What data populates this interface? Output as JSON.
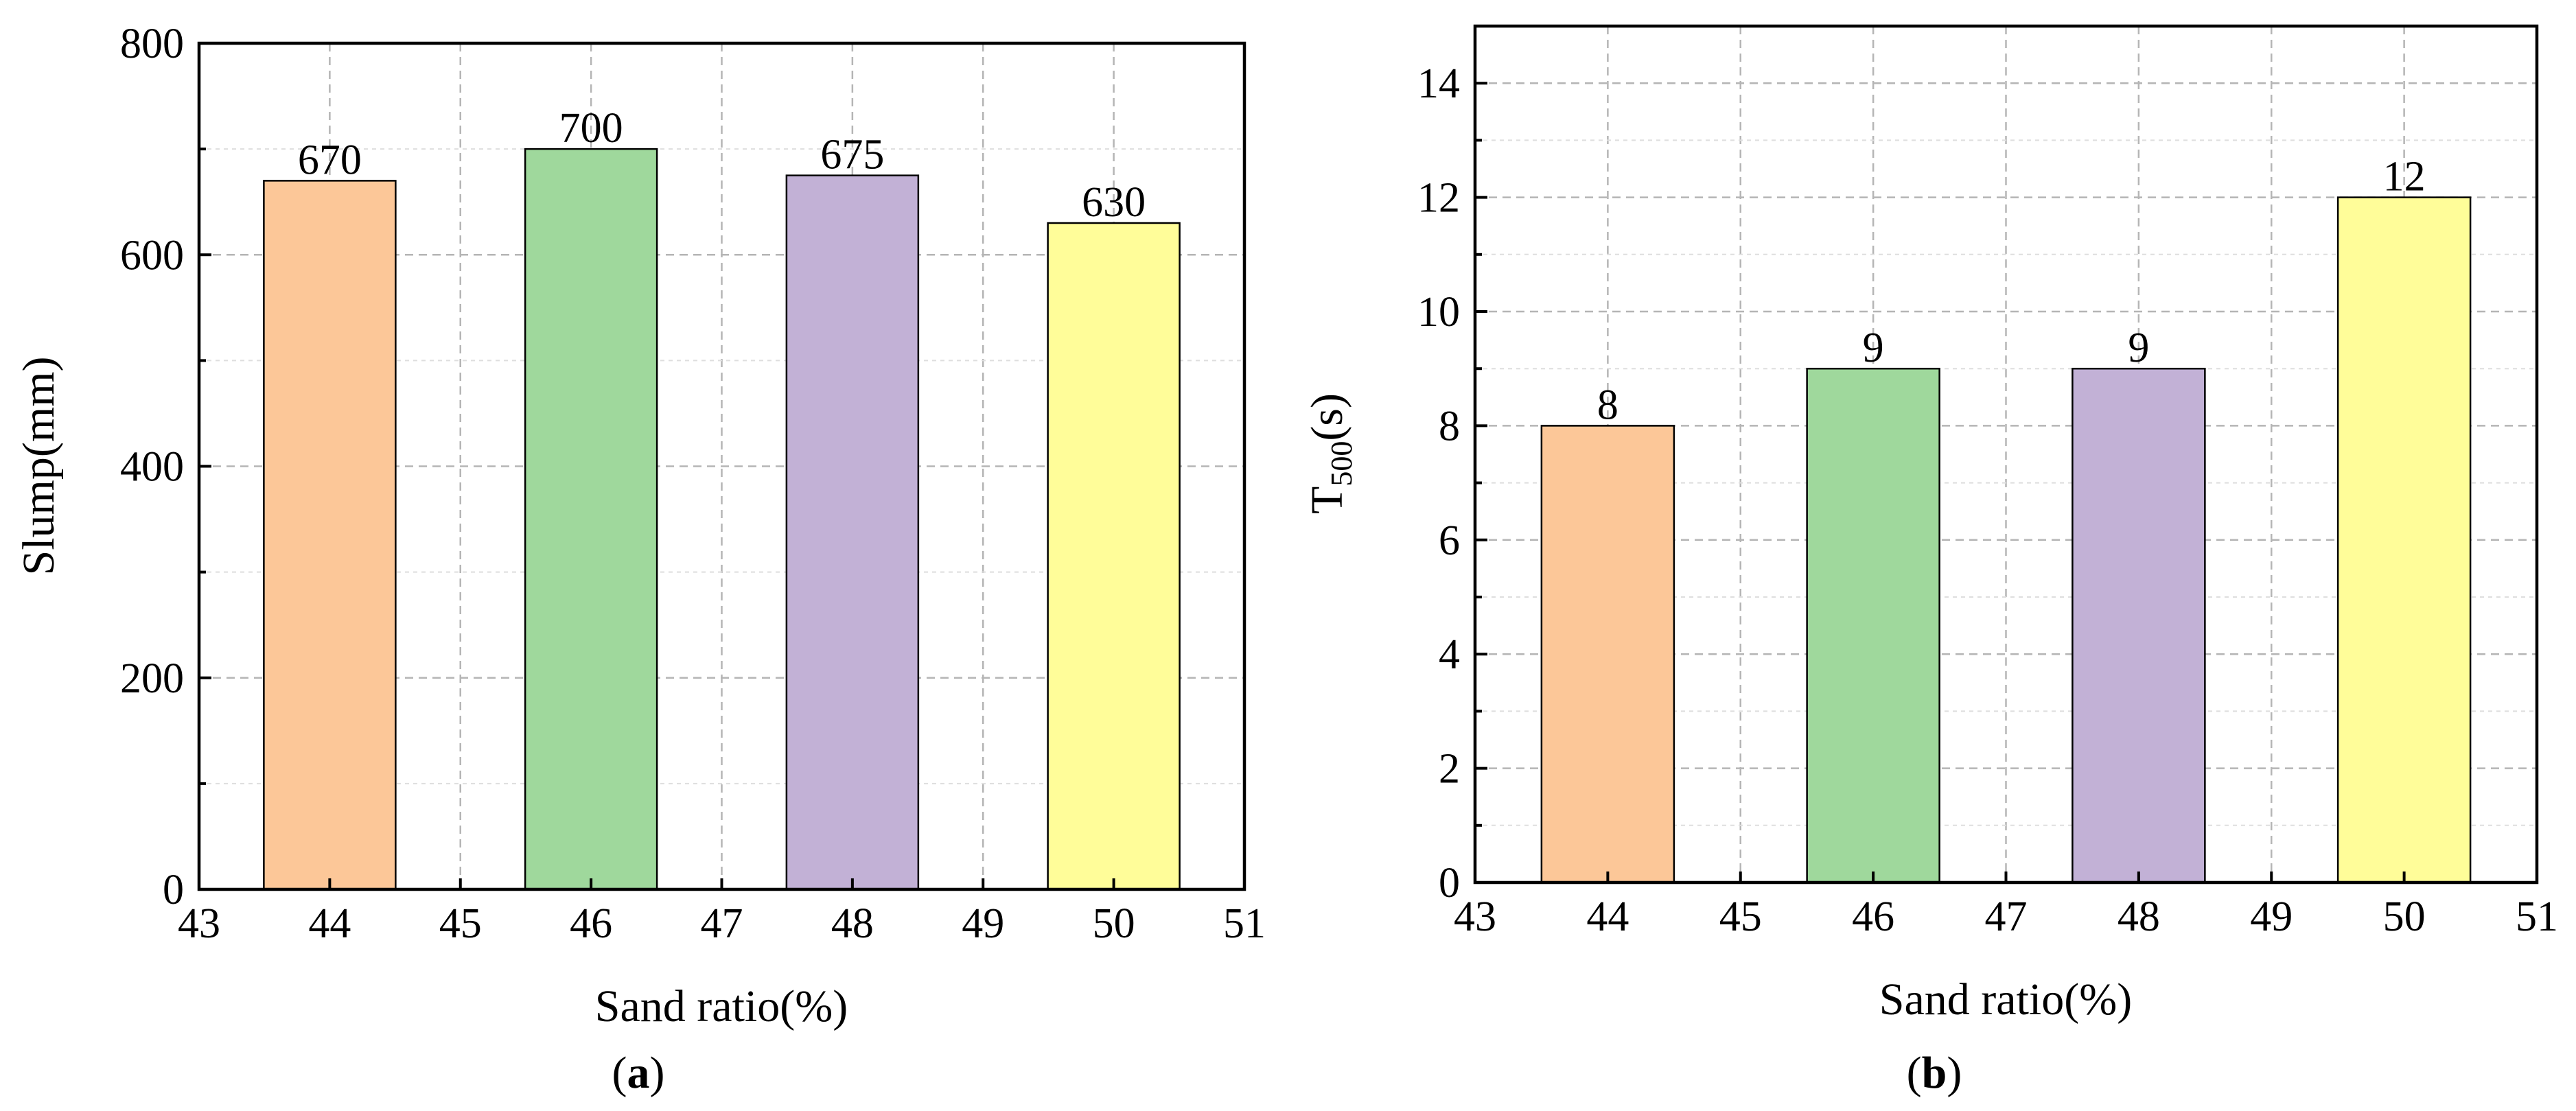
{
  "chart_data": [
    {
      "type": "bar",
      "panel": "a",
      "x": [
        44,
        46,
        48,
        50
      ],
      "values": [
        670,
        700,
        675,
        630
      ],
      "data_labels": [
        "670",
        "700",
        "675",
        "630"
      ],
      "colors": [
        "#fcc798",
        "#9fd89c",
        "#c2b1d6",
        "#fffd99"
      ],
      "xlim": [
        43,
        51
      ],
      "ylim": [
        0,
        800
      ],
      "xticks": [
        43,
        44,
        45,
        46,
        47,
        48,
        49,
        50,
        51
      ],
      "xtick_labels": [
        "43",
        "44",
        "45",
        "46",
        "47",
        "48",
        "49",
        "50",
        "51"
      ],
      "yticks": [
        0,
        200,
        400,
        600,
        800
      ],
      "ytick_labels": [
        "0",
        "200",
        "400",
        "600",
        "800"
      ],
      "xlabel": "Sand ratio(%)",
      "ylabel": "Slump(mm)",
      "grid": true,
      "caption": {
        "open": "(",
        "letter": "a",
        "close": ")"
      }
    },
    {
      "type": "bar",
      "panel": "b",
      "x": [
        44,
        46,
        48,
        50
      ],
      "values": [
        8,
        9,
        9,
        12
      ],
      "data_labels": [
        "8",
        "9",
        "9",
        "12"
      ],
      "colors": [
        "#fcc798",
        "#9fd89c",
        "#c2b1d6",
        "#fffd99"
      ],
      "xlim": [
        43,
        51
      ],
      "ylim": [
        0,
        15
      ],
      "xticks": [
        43,
        44,
        45,
        46,
        47,
        48,
        49,
        50,
        51
      ],
      "xtick_labels": [
        "43",
        "44",
        "45",
        "46",
        "47",
        "48",
        "49",
        "50",
        "51"
      ],
      "yticks": [
        0,
        2,
        4,
        6,
        8,
        10,
        12,
        14
      ],
      "ytick_labels": [
        "0",
        "2",
        "4",
        "6",
        "8",
        "10",
        "12",
        "14"
      ],
      "xlabel": "Sand ratio(%)",
      "ylabel": {
        "main": "T",
        "sub": "500",
        "rest": "(s)"
      },
      "grid": true,
      "caption": {
        "open": "(",
        "letter": "b",
        "close": ")"
      }
    }
  ]
}
